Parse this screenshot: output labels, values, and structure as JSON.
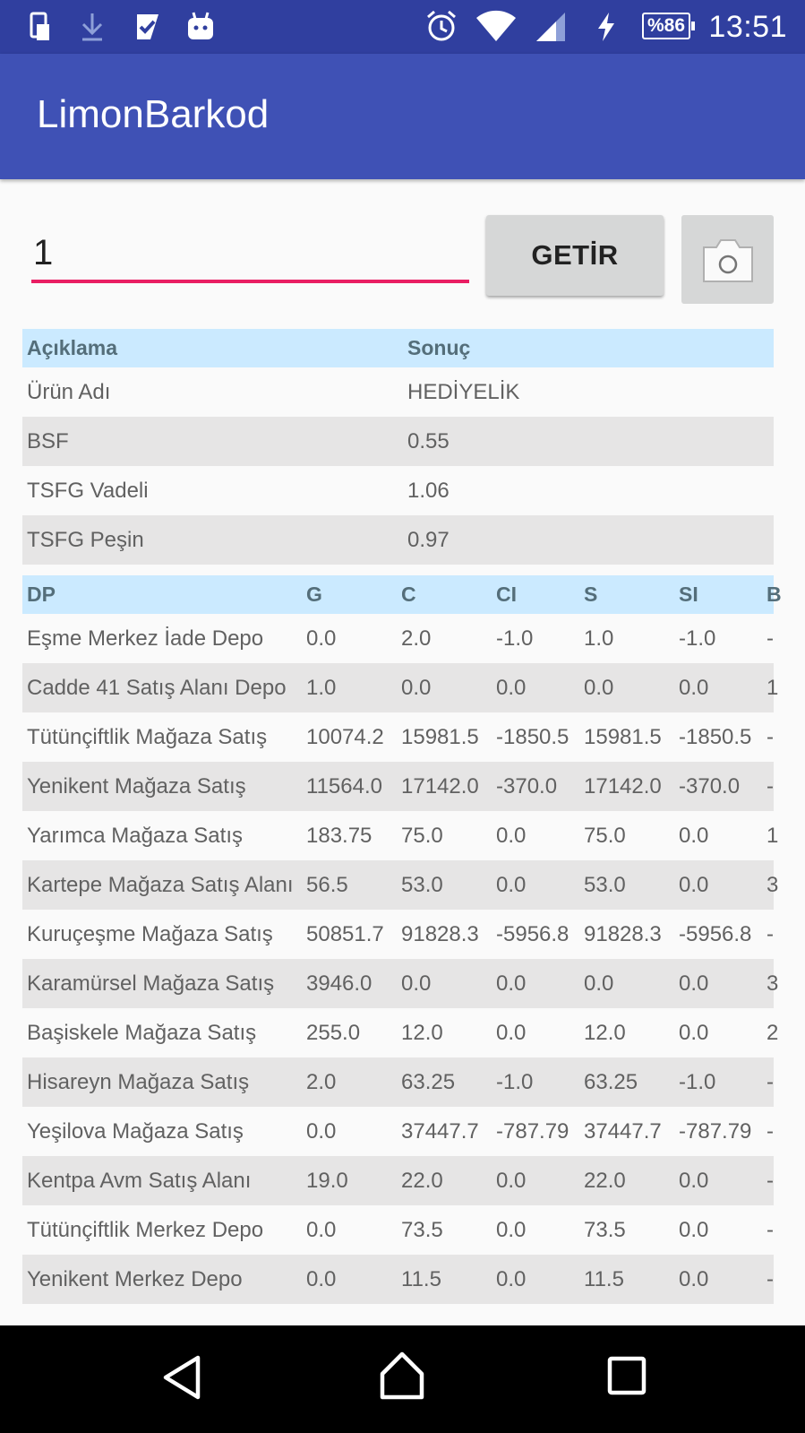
{
  "status_bar": {
    "time": "13:51",
    "battery": "%86",
    "left_icons": [
      "sim-card-icon",
      "download-icon",
      "checklist-icon",
      "android-icon"
    ],
    "right_icons": [
      "alarm-icon",
      "wifi-icon",
      "signal-icon",
      "charging-icon",
      "battery-icon"
    ]
  },
  "app_bar": {
    "title": "LimonBarkod",
    "color": "#3f51b5"
  },
  "search": {
    "value": "1",
    "button_label": "GETİR",
    "underline_color": "#e91e63"
  },
  "product_table": {
    "headers": [
      "Açıklama",
      "Sonuç"
    ],
    "rows": [
      {
        "label": "Ürün Adı",
        "value": "HEDİYELİK"
      },
      {
        "label": "BSF",
        "value": "0.55"
      },
      {
        "label": "TSFG Vadeli",
        "value": "1.06"
      },
      {
        "label": "TSFG Peşin",
        "value": "0.97"
      }
    ]
  },
  "stock_table": {
    "headers": [
      "DP",
      "G",
      "C",
      "CI",
      "S",
      "SI",
      "B"
    ],
    "rows": [
      {
        "dp": "Eşme Merkez İade Depo",
        "g": "0.0",
        "c": "2.0",
        "ci": "-1.0",
        "s": "1.0",
        "si": "-1.0",
        "b": "-"
      },
      {
        "dp": "Cadde 41 Satış Alanı Depo",
        "g": "1.0",
        "c": "0.0",
        "ci": "0.0",
        "s": "0.0",
        "si": "0.0",
        "b": "1"
      },
      {
        "dp": "Tütünçiftlik Mağaza Satış",
        "g": "10074.2",
        "c": "15981.5",
        "ci": "-1850.5",
        "s": "15981.5",
        "si": "-1850.5",
        "b": "-"
      },
      {
        "dp": "Yenikent Mağaza Satış",
        "g": "11564.0",
        "c": "17142.0",
        "ci": "-370.0",
        "s": "17142.0",
        "si": "-370.0",
        "b": "-"
      },
      {
        "dp": "Yarımca Mağaza Satış",
        "g": "183.75",
        "c": "75.0",
        "ci": "0.0",
        "s": "75.0",
        "si": "0.0",
        "b": "1"
      },
      {
        "dp": "Kartepe Mağaza Satış Alanı",
        "g": "56.5",
        "c": "53.0",
        "ci": "0.0",
        "s": "53.0",
        "si": "0.0",
        "b": "3"
      },
      {
        "dp": "Kuruçeşme Mağaza Satış",
        "g": "50851.7",
        "c": "91828.3",
        "ci": "-5956.8",
        "s": "91828.3",
        "si": "-5956.8",
        "b": "-"
      },
      {
        "dp": "Karamürsel Mağaza Satış",
        "g": "3946.0",
        "c": "0.0",
        "ci": "0.0",
        "s": "0.0",
        "si": "0.0",
        "b": "3"
      },
      {
        "dp": "Başiskele Mağaza Satış",
        "g": "255.0",
        "c": "12.0",
        "ci": "0.0",
        "s": "12.0",
        "si": "0.0",
        "b": "2"
      },
      {
        "dp": "Hisareyn Mağaza Satış",
        "g": "2.0",
        "c": "63.25",
        "ci": "-1.0",
        "s": "63.25",
        "si": "-1.0",
        "b": "-"
      },
      {
        "dp": "Yeşilova Mağaza Satış",
        "g": "0.0",
        "c": "37447.7",
        "ci": "-787.79",
        "s": "37447.7",
        "si": "-787.79",
        "b": "-"
      },
      {
        "dp": "Kentpa Avm Satış Alanı",
        "g": "19.0",
        "c": "22.0",
        "ci": "0.0",
        "s": "22.0",
        "si": "0.0",
        "b": "-"
      },
      {
        "dp": "Tütünçiftlik Merkez Depo",
        "g": "0.0",
        "c": "73.5",
        "ci": "0.0",
        "s": "73.5",
        "si": "0.0",
        "b": "-"
      },
      {
        "dp": "Yenikent Merkez Depo",
        "g": "0.0",
        "c": "11.5",
        "ci": "0.0",
        "s": "11.5",
        "si": "0.0",
        "b": "-"
      }
    ]
  },
  "nav_bar": {
    "icons": [
      "back-icon",
      "home-icon",
      "recents-icon"
    ]
  }
}
